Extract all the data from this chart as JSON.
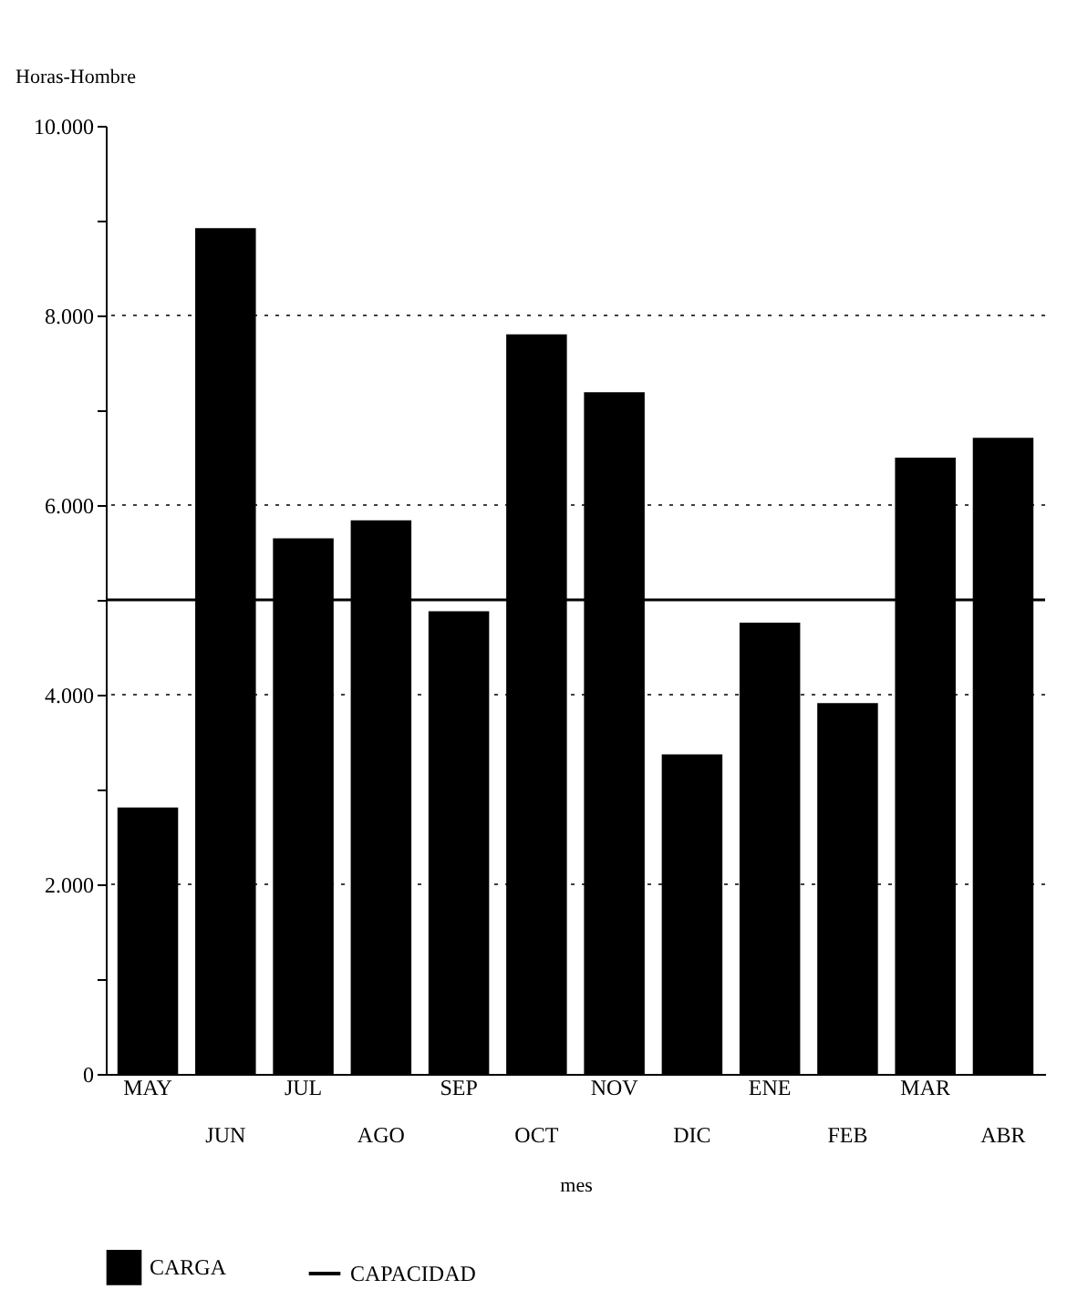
{
  "chart_data": {
    "type": "bar",
    "ylabel": "Horas-Hombre",
    "xlabel": "mes",
    "categories": [
      "MAY",
      "JUN",
      "JUL",
      "AGO",
      "SEP",
      "OCT",
      "NOV",
      "DIC",
      "ENE",
      "FEB",
      "MAR",
      "ABR"
    ],
    "series": [
      {
        "name": "CARGA",
        "color": "#000000",
        "values": [
          2810,
          8920,
          5650,
          5840,
          4880,
          7800,
          7190,
          3370,
          4760,
          3910,
          6500,
          6710
        ]
      }
    ],
    "ref_lines": [
      {
        "axis": "y",
        "value": 5000,
        "label": "CAPACIDAD",
        "color": "#000000"
      }
    ],
    "ylim": [
      0,
      10000
    ],
    "yticks": [
      "0",
      {
        "value": 1000,
        "label": null
      },
      {
        "value": 2000,
        "label": "2.000"
      },
      {
        "value": 3000,
        "label": null
      },
      {
        "value": 4000,
        "label": "4.000"
      },
      {
        "value": 5000,
        "label": null
      },
      {
        "value": 6000,
        "label": "6.000"
      },
      {
        "value": 7000,
        "label": null
      },
      {
        "value": 8000,
        "label": "8.000"
      },
      {
        "value": 9000,
        "label": null
      },
      {
        "value": 10000,
        "label": "10.000"
      }
    ],
    "grid": "y",
    "legend": "bottom"
  }
}
